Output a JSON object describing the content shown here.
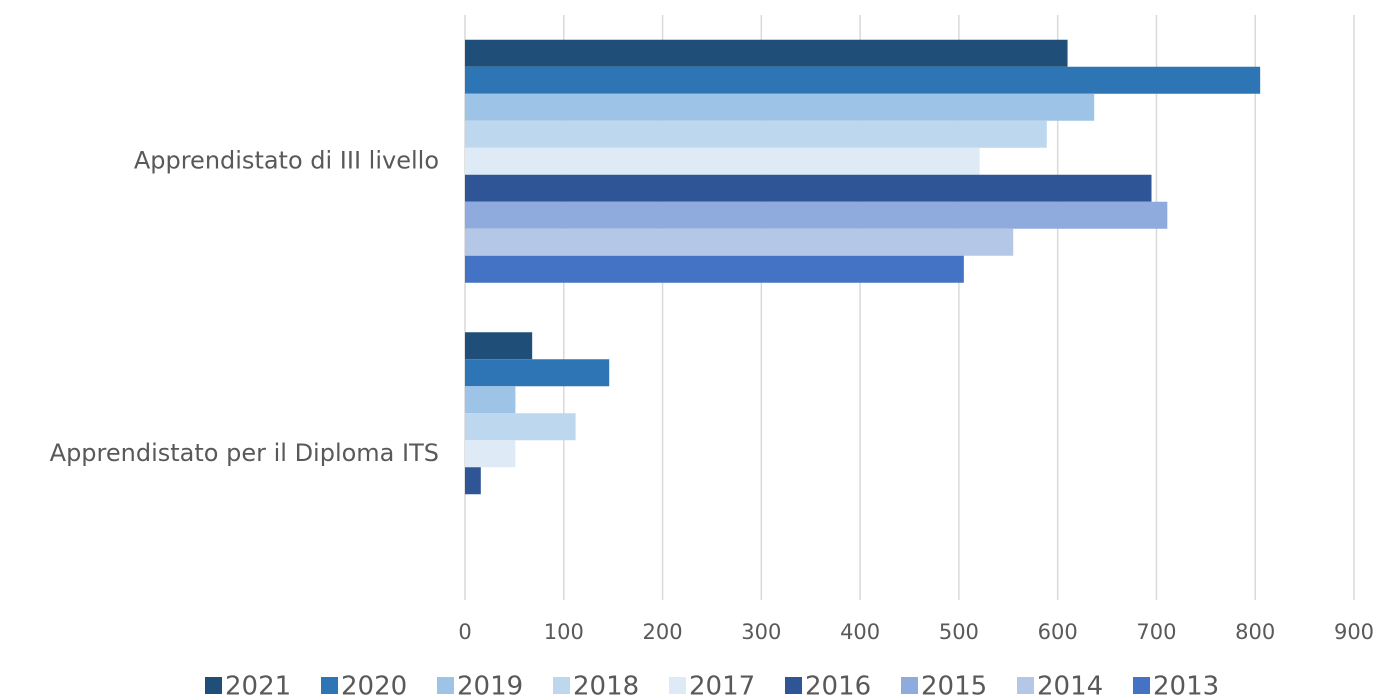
{
  "chart_data": {
    "type": "barh",
    "categories": [
      "Apprendistato di III livello",
      "Apprendistato per il Diploma ITS"
    ],
    "series": [
      {
        "name": "2021",
        "color": "#1f4e79",
        "values": [
          610,
          68
        ]
      },
      {
        "name": "2020",
        "color": "#2e75b6",
        "values": [
          805,
          146
        ]
      },
      {
        "name": "2019",
        "color": "#9dc3e6",
        "values": [
          637,
          51
        ]
      },
      {
        "name": "2018",
        "color": "#bdd7ee",
        "values": [
          589,
          112
        ]
      },
      {
        "name": "2017",
        "color": "#deebf7",
        "values": [
          521,
          51
        ]
      },
      {
        "name": "2016",
        "color": "#2f5597",
        "values": [
          695,
          16
        ]
      },
      {
        "name": "2015",
        "color": "#8faadc",
        "values": [
          711,
          null
        ]
      },
      {
        "name": "2014",
        "color": "#b4c7e7",
        "values": [
          555,
          null
        ]
      },
      {
        "name": "2013",
        "color": "#4472c4",
        "values": [
          505,
          null
        ]
      }
    ],
    "xlim": [
      0,
      900
    ],
    "xticks": [
      0,
      100,
      200,
      300,
      400,
      500,
      600,
      700,
      800,
      900
    ],
    "grid": true,
    "legend": "bottom"
  }
}
